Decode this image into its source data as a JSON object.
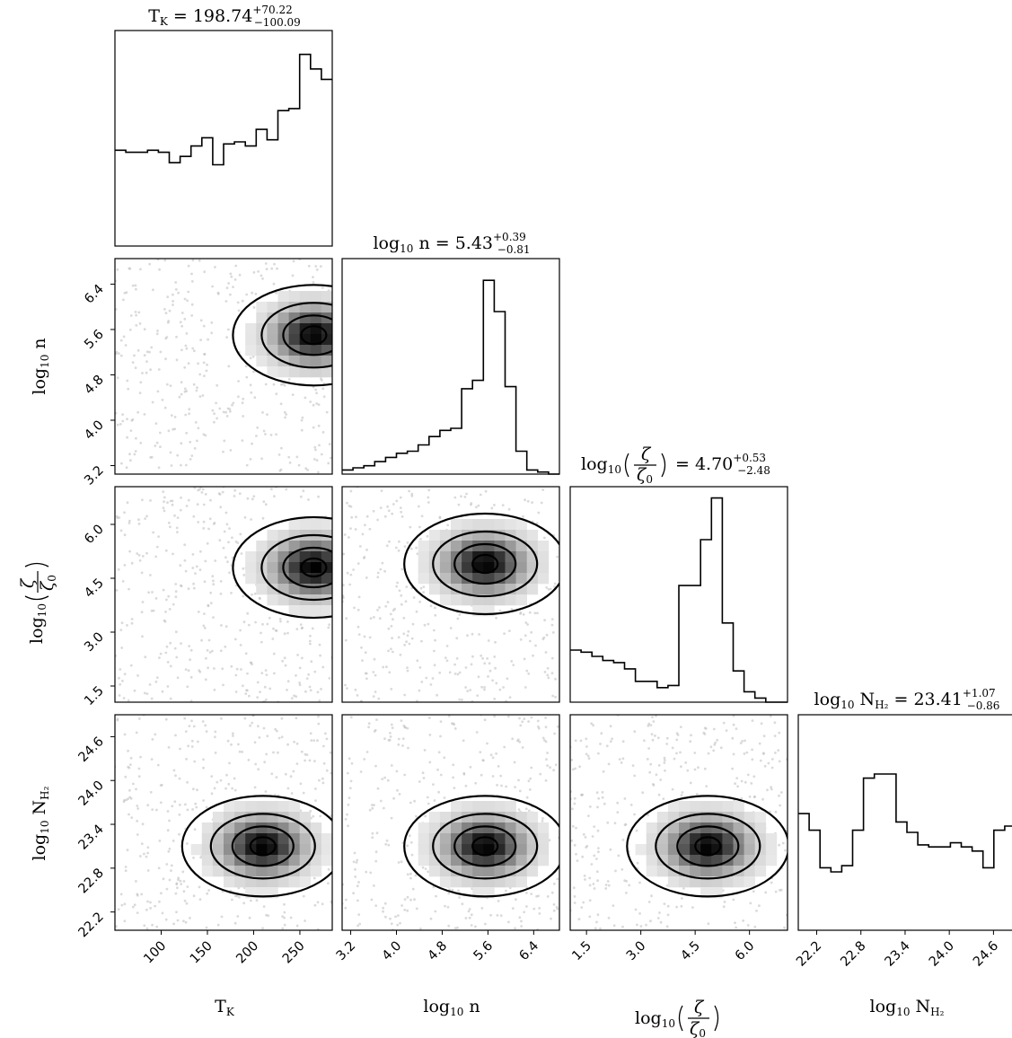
{
  "chart_data": {
    "type": "corner",
    "parameters": [
      {
        "key": "tk",
        "label": "T_K",
        "range": [
          50,
          285
        ],
        "ticks": [
          100,
          150,
          200,
          250
        ],
        "title_value": "198.74",
        "title_plus": "+70.22",
        "title_minus": "−100.09"
      },
      {
        "key": "n",
        "label": "log10 n",
        "range": [
          3.05,
          6.85
        ],
        "ticks": [
          3.2,
          4.0,
          4.8,
          5.6,
          6.4
        ],
        "title_value": "5.43",
        "title_plus": "+0.39",
        "title_minus": "−0.81"
      },
      {
        "key": "zeta",
        "label": "log10(ζ/ζ0)",
        "range": [
          1.05,
          7.05
        ],
        "ticks": [
          1.5,
          3.0,
          4.5,
          6.0
        ],
        "title_value": "4.70",
        "title_plus": "+0.53",
        "title_minus": "−2.48"
      },
      {
        "key": "nh2",
        "label": "log10 N_H2",
        "range": [
          21.95,
          24.9
        ],
        "ticks": [
          22.2,
          22.8,
          23.4,
          24.0,
          24.6
        ],
        "title_value": "23.41",
        "title_plus": "+1.07",
        "title_minus": "−0.86"
      }
    ],
    "tick_labels": {
      "tk": [
        "100",
        "150",
        "200",
        "250"
      ],
      "n": [
        "3.2",
        "4.0",
        "4.8",
        "5.6",
        "6.4"
      ],
      "zeta": [
        "1.5",
        "3.0",
        "4.5",
        "6.0"
      ],
      "nh2": [
        "22.2",
        "22.8",
        "23.4",
        "24.0",
        "24.6",
        "22.2",
        "22.8",
        "23.4",
        "24.0",
        "24.6"
      ]
    },
    "histograms": {
      "tk": [
        0.46,
        0.45,
        0.45,
        0.46,
        0.45,
        0.4,
        0.43,
        0.48,
        0.52,
        0.39,
        0.49,
        0.5,
        0.48,
        0.56,
        0.51,
        0.65,
        0.66,
        0.92,
        0.85,
        0.8
      ],
      "n": [
        0.02,
        0.03,
        0.04,
        0.06,
        0.08,
        0.1,
        0.11,
        0.14,
        0.18,
        0.21,
        0.22,
        0.41,
        0.45,
        0.93,
        0.78,
        0.42,
        0.11,
        0.02,
        0.01,
        0.0
      ],
      "zeta": [
        0.25,
        0.24,
        0.22,
        0.2,
        0.19,
        0.16,
        0.1,
        0.1,
        0.07,
        0.08,
        0.56,
        0.56,
        0.78,
        0.98,
        0.38,
        0.15,
        0.05,
        0.02,
        0.0,
        0.0
      ],
      "nh2": [
        0.56,
        0.48,
        0.3,
        0.28,
        0.31,
        0.48,
        0.73,
        0.75,
        0.75,
        0.52,
        0.47,
        0.41,
        0.4,
        0.4,
        0.42,
        0.4,
        0.38,
        0.3,
        0.48,
        0.5
      ]
    },
    "density_peaks": [
      {
        "row": "n",
        "col": "tk",
        "x": 265,
        "y": 5.5
      },
      {
        "row": "zeta",
        "col": "tk",
        "x": 265,
        "y": 4.8
      },
      {
        "row": "zeta",
        "col": "n",
        "x": 5.55,
        "y": 4.9
      },
      {
        "row": "nh2",
        "col": "tk",
        "x": 210,
        "y": 23.1
      },
      {
        "row": "nh2",
        "col": "n",
        "x": 5.55,
        "y": 23.1
      },
      {
        "row": "nh2",
        "col": "zeta",
        "x": 4.85,
        "y": 23.1
      }
    ],
    "grid": false
  }
}
